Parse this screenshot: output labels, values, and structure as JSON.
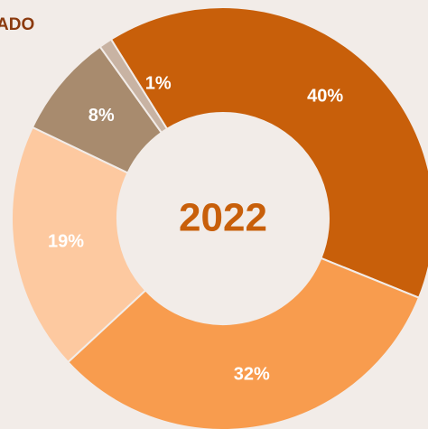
{
  "chart_data": {
    "type": "donut",
    "title": "ADO",
    "center_label": "2022",
    "categories": [
      null,
      null,
      null,
      null,
      null
    ],
    "values": [
      40,
      32,
      19,
      8,
      1
    ],
    "value_labels": [
      "40%",
      "32%",
      "19%",
      "8%",
      "1%"
    ],
    "colors": [
      "#c85f0a",
      "#f89c4e",
      "#fdc9a0",
      "#a88b6e",
      "#c8b3a3"
    ]
  }
}
